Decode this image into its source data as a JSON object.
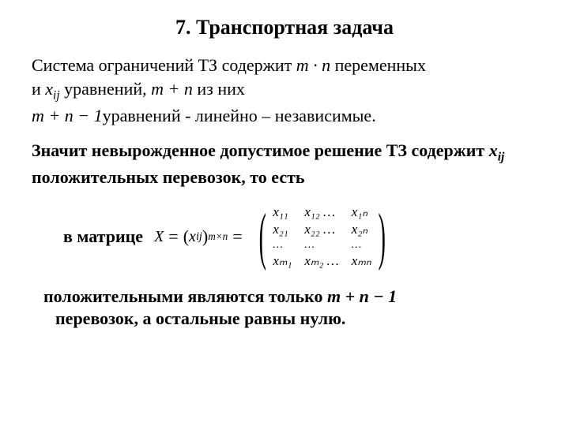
{
  "title": "7. Транспортная задача",
  "p1_part1": "Система ограничений ТЗ содержит ",
  "p1_math1": "m · n",
  "p1_part2": " переменных",
  "p2_part1": "и ",
  "p2_math1_pre": "",
  "p2_var": "x",
  "p2_varsub": "ij",
  "p2_part2": " уравнений, ",
  "p2_math2": "m + n",
  "p2_part3": " из них",
  "p3_math1": "m + n − 1",
  "p3_part1": "уравнений ",
  "p3_part2": " - линейно – независимые.",
  "p4_part1": "Значит невырожденное допустимое решение ТЗ содержит ",
  "p4_var": "x",
  "p4_varsub": "ij",
  "p4_part2": " положительных перевозок, то есть",
  "matrix_label": "в матрице",
  "matrix_lhs_X": "X",
  "matrix_eq1": "=",
  "matrix_xij_open": "(",
  "matrix_xij_x": "x",
  "matrix_xij_sub": "ij",
  "matrix_xij_close": ")",
  "matrix_size_sub": "m×n",
  "matrix_eq2": "=",
  "matrix": {
    "r1c1": "x₁₁",
    "r1c2": "x₁₂ …",
    "r1c3": "x₁ₙ",
    "r2c1": "x₂₁",
    "r2c2": "x₂₂ …",
    "r2c3": "x₂ₙ",
    "r3c1": "…",
    "r3c2": "…",
    "r3c3": "…",
    "r4c1": "xₘ₁",
    "r4c2": "xₘ₂ …",
    "r4c3": "xₘₙ"
  },
  "p5_part1": "положительными являются только ",
  "p5_math": "m + n − 1",
  "p6": "перевозок, а остальные равны нулю."
}
